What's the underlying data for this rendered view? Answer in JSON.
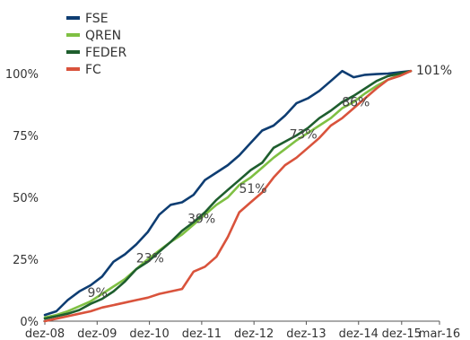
{
  "chart_data": {
    "type": "line",
    "title": "",
    "xlabel": "",
    "ylabel": "",
    "x_tick_labels": [
      "dez-08",
      "dez-09",
      "dez-10",
      "dez-11",
      "dez-12",
      "dez-13",
      "dez-14",
      "dez-15",
      "mar-16"
    ],
    "y_tick_labels": [
      "0%",
      "25%",
      "50%",
      "75%",
      "100%"
    ],
    "ylim": [
      0,
      100
    ],
    "legend_position": "top-left",
    "grid": false,
    "x": [
      0,
      1,
      2,
      3,
      4,
      5,
      6,
      7,
      8,
      9,
      10,
      11,
      12,
      13,
      14,
      15,
      16,
      17,
      18,
      19,
      20,
      21,
      22,
      23,
      24,
      25,
      26,
      27,
      28,
      29,
      30,
      31,
      32
    ],
    "series": [
      {
        "name": "FSE",
        "color": "#0e3d72",
        "values": [
          2.5,
          4,
          8.5,
          12,
          14.5,
          18,
          24,
          27,
          31,
          36,
          43,
          47,
          48,
          51,
          57,
          60,
          63,
          67,
          72,
          77,
          79,
          83,
          88,
          90,
          93,
          97,
          101,
          98.5,
          99.5,
          99.8,
          100,
          100.5,
          101
        ]
      },
      {
        "name": "QREN",
        "color": "#7fc043",
        "values": [
          1.5,
          2.5,
          4,
          6,
          8,
          11,
          14,
          17,
          21,
          25,
          28.5,
          32,
          35,
          39,
          43,
          47,
          50,
          55,
          58,
          62,
          66,
          69.5,
          73,
          76,
          79,
          82,
          86,
          88.5,
          92,
          95,
          97.5,
          99.5,
          101
        ]
      },
      {
        "name": "FEDER",
        "color": "#1e5e2e",
        "values": [
          1,
          2,
          3,
          4.5,
          7,
          9,
          12,
          16,
          21,
          24,
          28,
          32,
          36.5,
          40,
          44,
          49,
          53,
          57,
          61,
          64,
          70,
          72.5,
          75,
          78,
          82,
          85,
          88.5,
          91,
          94,
          97,
          99,
          100,
          101
        ]
      },
      {
        "name": "FC",
        "color": "#d9533c",
        "values": [
          0,
          1,
          2,
          3,
          4,
          5.5,
          6.5,
          7.5,
          8.5,
          9.5,
          11,
          12,
          13,
          20,
          22,
          26,
          34,
          44,
          48,
          52,
          58,
          63,
          66,
          70,
          74,
          79,
          82,
          86,
          90,
          94,
          97.5,
          99,
          101
        ]
      }
    ],
    "annotations": [
      {
        "text": "9%",
        "x": 4.6,
        "y": 9
      },
      {
        "text": "23%",
        "x": 9.2,
        "y": 23
      },
      {
        "text": "39%",
        "x": 13.7,
        "y": 39
      },
      {
        "text": "51%",
        "x": 18.2,
        "y": 51
      },
      {
        "text": "73%",
        "x": 22.6,
        "y": 73
      },
      {
        "text": "86%",
        "x": 27.2,
        "y": 86
      },
      {
        "text": "101%",
        "x": 32,
        "y": 101
      }
    ]
  }
}
